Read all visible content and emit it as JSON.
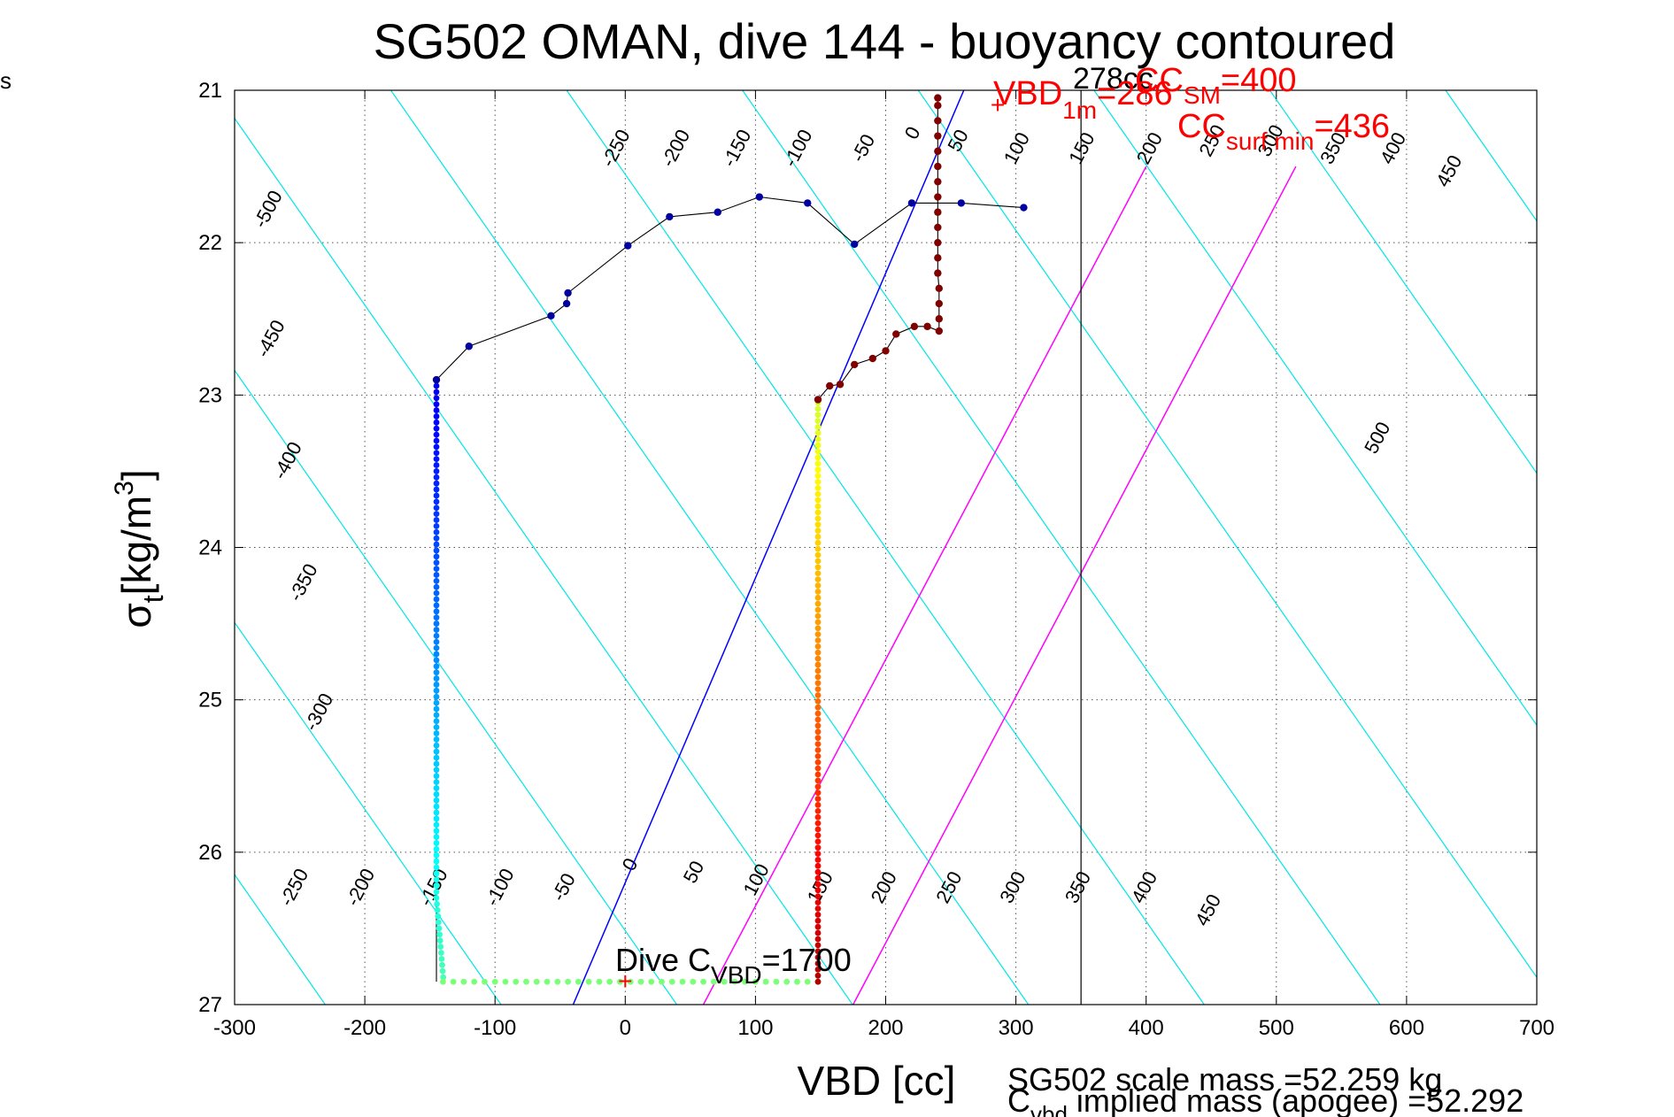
{
  "corner_label": "s",
  "title": "SG502 OMAN, dive 144 - buoyancy contoured",
  "xlabel": "VBD [cc]",
  "ylabel_main": "σ",
  "ylabel_sub": "t",
  "ylabel_unit": "[kg/m",
  "ylabel_sup": "3",
  "ylabel_close": "]",
  "colors": {
    "contour": "#00e6e6",
    "magenta": "#ff00ff",
    "blue_line": "#0000ff",
    "red_text": "#ff0000",
    "grid": "#555555",
    "black": "#000000",
    "surface_dots": "#0000a0",
    "climb_dots": "#800000"
  },
  "annotations": {
    "cc_value": "278cc",
    "cc_sm_prefix": "CC",
    "cc_sm_sub": "SM",
    "cc_sm_value": "=400",
    "vbd_1m_prefix": "VBD",
    "vbd_1m_sub": "1m",
    "vbd_1m_value": "=286",
    "cc_surf_prefix": "CC",
    "cc_surf_sub": "surf min",
    "cc_surf_value": "=436",
    "dive_c_prefix": "Dive C",
    "dive_c_sub": "VBD",
    "dive_c_value": "=1700",
    "scale_mass": "SG502 scale mass =52.259 kg",
    "implied_prefix": "C",
    "implied_sub": "vbd",
    "implied_rest": " implied mass (apogee) =52.292"
  },
  "chart_data": {
    "type": "scatter",
    "title": "SG502 OMAN, dive 144 - buoyancy contoured",
    "xlabel": "VBD [cc]",
    "ylabel": "σt [kg/m3]",
    "xlim": [
      -300,
      700
    ],
    "ylim": [
      21,
      27
    ],
    "y_reversed": true,
    "grid": true,
    "x_ticks": [
      -300,
      -200,
      -100,
      0,
      100,
      200,
      300,
      400,
      500,
      600,
      700
    ],
    "x_tick_labels": [
      "-300",
      "-200",
      "-100",
      "0",
      "100",
      "200",
      "300",
      "400",
      "500",
      "600",
      "700"
    ],
    "y_ticks": [
      21,
      22,
      23,
      24,
      25,
      26,
      27
    ],
    "y_tick_labels": [
      "21",
      "22",
      "23",
      "24",
      "25",
      "26",
      "27"
    ],
    "contours": {
      "levels": [
        -500,
        -450,
        -400,
        -350,
        -300,
        -250,
        -200,
        -150,
        -100,
        -50,
        0,
        50,
        100,
        150,
        200,
        250,
        300,
        350,
        400,
        450,
        500
      ],
      "x_at_sigma21": [
        -1800,
        -1665,
        -1530,
        -1395,
        -1260,
        -1125,
        -990,
        -855,
        -720,
        -585,
        -450,
        -315,
        -180,
        -45,
        90,
        225,
        360,
        495,
        630,
        765,
        900
      ],
      "x_per_sigma": 81.6,
      "top_labels": [
        {
          "text": "-500",
          "x": -270,
          "y": 21.8
        },
        {
          "text": "-250",
          "x": -3,
          "y": 21.4
        },
        {
          "text": "-200",
          "x": 43,
          "y": 21.4
        },
        {
          "text": "-150",
          "x": 90,
          "y": 21.4
        },
        {
          "text": "-100",
          "x": 137,
          "y": 21.4
        },
        {
          "text": "-50",
          "x": 187,
          "y": 21.4
        },
        {
          "text": "0",
          "x": 225,
          "y": 21.3
        },
        {
          "text": "50",
          "x": 260,
          "y": 21.35
        },
        {
          "text": "100",
          "x": 305,
          "y": 21.4
        },
        {
          "text": "150",
          "x": 355,
          "y": 21.4
        },
        {
          "text": "200",
          "x": 407,
          "y": 21.4
        },
        {
          "text": "250",
          "x": 455,
          "y": 21.35
        },
        {
          "text": "300",
          "x": 500,
          "y": 21.35
        },
        {
          "text": "350",
          "x": 548,
          "y": 21.4
        },
        {
          "text": "400",
          "x": 594,
          "y": 21.4
        },
        {
          "text": "450",
          "x": 637,
          "y": 21.55
        },
        {
          "text": "-450",
          "x": -268,
          "y": 22.65
        },
        {
          "text": "-400",
          "x": -255,
          "y": 23.45
        },
        {
          "text": "-350",
          "x": -243,
          "y": 24.25
        },
        {
          "text": "-300",
          "x": -231,
          "y": 25.1
        },
        {
          "text": "500",
          "x": 582,
          "y": 23.3
        }
      ],
      "bottom_labels": [
        {
          "text": "-250",
          "x": -250,
          "y": 26.25
        },
        {
          "text": "-200",
          "x": -199,
          "y": 26.25
        },
        {
          "text": "-150",
          "x": -143,
          "y": 26.25
        },
        {
          "text": "-100",
          "x": -92,
          "y": 26.25
        },
        {
          "text": "-50",
          "x": -43,
          "y": 26.25
        },
        {
          "text": "0",
          "x": 8,
          "y": 26.1
        },
        {
          "text": "50",
          "x": 57,
          "y": 26.15
        },
        {
          "text": "100",
          "x": 105,
          "y": 26.2
        },
        {
          "text": "150",
          "x": 154,
          "y": 26.25
        },
        {
          "text": "200",
          "x": 203,
          "y": 26.25
        },
        {
          "text": "250",
          "x": 253,
          "y": 26.25
        },
        {
          "text": "300",
          "x": 302,
          "y": 26.25
        },
        {
          "text": "350",
          "x": 352,
          "y": 26.25
        },
        {
          "text": "400",
          "x": 403,
          "y": 26.25
        },
        {
          "text": "450",
          "x": 452,
          "y": 26.4
        }
      ]
    },
    "magenta_lines": [
      {
        "x0": 60,
        "y0": 27,
        "x1": 400,
        "y1": 21.5
      },
      {
        "x0": 175,
        "y0": 27,
        "x1": 515,
        "y1": 21.5
      }
    ],
    "blue_line": {
      "x0": -40,
      "y0": 27,
      "x1": 260,
      "y1": 21
    },
    "vertical_line": {
      "x": 350
    },
    "series": [
      {
        "name": "surface",
        "color": "#0000a0",
        "points": [
          [
            -145,
            22.9
          ],
          [
            -120,
            22.68
          ],
          [
            -57,
            22.48
          ],
          [
            -45,
            22.4
          ],
          [
            -44,
            22.33
          ],
          [
            2,
            22.02
          ],
          [
            34,
            21.83
          ],
          [
            71,
            21.8
          ],
          [
            103,
            21.7
          ],
          [
            140,
            21.74
          ],
          [
            176,
            22.01
          ],
          [
            220,
            21.74
          ],
          [
            258,
            21.74
          ],
          [
            306,
            21.77
          ]
        ]
      },
      {
        "name": "climb",
        "color": "#800000",
        "points": [
          [
            148,
            23.03
          ],
          [
            157,
            22.94
          ],
          [
            165,
            22.93
          ],
          [
            176,
            22.8
          ],
          [
            190,
            22.76
          ],
          [
            200,
            22.71
          ],
          [
            208,
            22.6
          ],
          [
            222,
            22.55
          ],
          [
            232,
            22.55
          ],
          [
            241,
            22.58
          ],
          [
            241,
            22.5
          ],
          [
            241,
            22.4
          ],
          [
            241,
            22.3
          ],
          [
            240,
            22.2
          ],
          [
            240,
            22.1
          ],
          [
            240,
            22.0
          ],
          [
            240,
            21.9
          ],
          [
            240,
            21.8
          ],
          [
            240,
            21.7
          ],
          [
            240,
            21.6
          ],
          [
            240,
            21.5
          ],
          [
            240,
            21.4
          ],
          [
            240,
            21.3
          ],
          [
            240,
            21.2
          ],
          [
            240,
            21.1
          ],
          [
            240,
            21.05
          ]
        ]
      }
    ],
    "dive_profile": {
      "descent_x": -145,
      "descent_from": 22.9,
      "descent_to": 26.85,
      "bottom_y": 26.85,
      "bottom_from": -140,
      "bottom_to": 148,
      "climb_x": 148,
      "climb_from": 26.85,
      "climb_to": 23.03
    },
    "markers": [
      {
        "name": "VBD 1m",
        "x": 286,
        "y": 21.1,
        "symbol": "+",
        "color": "#ff0000"
      },
      {
        "name": "Dive C",
        "x": 0,
        "y": 26.85,
        "symbol": "+",
        "color": "#ff0000"
      }
    ]
  }
}
